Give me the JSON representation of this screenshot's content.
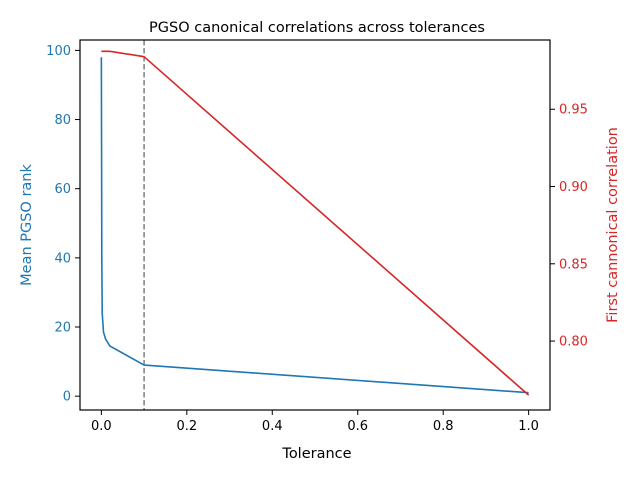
{
  "chart_data": {
    "type": "line",
    "title": "PGSO canonical correlations across tolerances",
    "xlabel": "Tolerance",
    "xlim": [
      -0.05,
      1.05
    ],
    "x_ticks": [
      0.0,
      0.2,
      0.4,
      0.6,
      0.8,
      1.0
    ],
    "x_tick_labels": [
      "0.0",
      "0.2",
      "0.4",
      "0.6",
      "0.8",
      "1.0"
    ],
    "grid": false,
    "reference_line": {
      "x": 0.1,
      "style": "dashed",
      "color": "#808080"
    },
    "axes": {
      "left": {
        "label": "Mean PGSO rank",
        "color": "#1f77b4",
        "ylim": [
          -4,
          103
        ],
        "ticks": [
          0,
          20,
          40,
          60,
          80,
          100
        ],
        "tick_labels": [
          "0",
          "20",
          "40",
          "60",
          "80",
          "100"
        ]
      },
      "right": {
        "label": "First cannonical correlation",
        "color": "#d62728",
        "ylim": [
          0.7554,
          0.9948
        ],
        "ticks": [
          0.8,
          0.85,
          0.9,
          0.95
        ],
        "tick_labels": [
          "0.80",
          "0.85",
          "0.90",
          "0.95"
        ]
      }
    },
    "series": [
      {
        "axis": "left",
        "color": "#1f77b4",
        "x": [
          0.0,
          0.0005,
          0.001,
          0.002,
          0.005,
          0.01,
          0.02,
          0.1,
          1.0
        ],
        "y": [
          98,
          70,
          40,
          24,
          18.5,
          16.5,
          14.5,
          9,
          1
        ]
      },
      {
        "axis": "right",
        "color": "#d62728",
        "x": [
          0.0,
          0.005,
          0.01,
          0.02,
          0.1,
          1.0
        ],
        "y": [
          0.9875,
          0.9875,
          0.9875,
          0.9875,
          0.984,
          0.765
        ]
      }
    ]
  }
}
